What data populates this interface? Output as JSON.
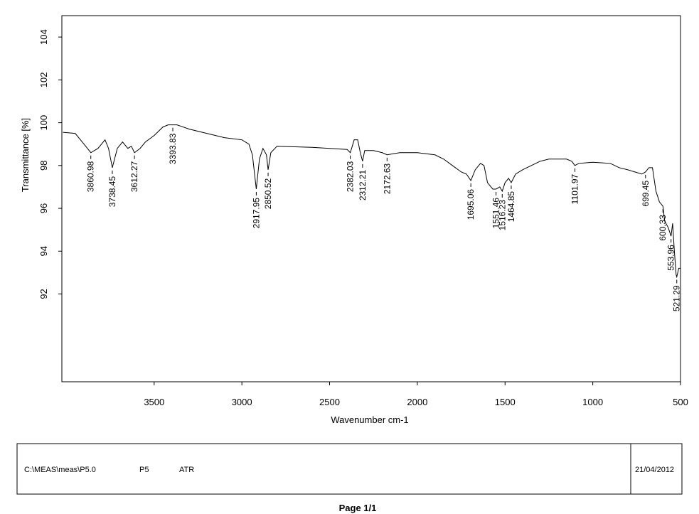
{
  "chart_data": {
    "type": "line",
    "x_label": "Wavenumber cm-1",
    "y_label": "Transmittance [%]",
    "color": "#000000",
    "xlim": [
      4026,
      500
    ],
    "ylim": [
      87.9,
      105
    ],
    "xticks": [
      3500,
      3000,
      2500,
      2000,
      1500,
      1000,
      500
    ],
    "yticks": [
      92,
      94,
      96,
      98,
      100,
      102,
      104
    ],
    "x": [
      4020,
      3950,
      3900,
      3860.98,
      3820,
      3780,
      3760,
      3738.45,
      3710,
      3680,
      3650,
      3630,
      3612.27,
      3580,
      3550,
      3500,
      3450,
      3420,
      3393.83,
      3370,
      3300,
      3200,
      3100,
      3000,
      2960,
      2940,
      2917.95,
      2900,
      2880,
      2860,
      2850.52,
      2835,
      2800,
      2600,
      2400,
      2382.03,
      2360,
      2340,
      2325,
      2312.21,
      2300,
      2250,
      2200,
      2172.63,
      2100,
      2000,
      1900,
      1850,
      1800,
      1750,
      1720,
      1695.06,
      1670,
      1640,
      1620,
      1600,
      1570,
      1551.46,
      1530,
      1516.23,
      1500,
      1480,
      1464.85,
      1440,
      1400,
      1350,
      1300,
      1250,
      1200,
      1150,
      1120,
      1101.97,
      1080,
      1000,
      900,
      850,
      800,
      720,
      699.45,
      680,
      660,
      640,
      620,
      600.33,
      590,
      570,
      553.96,
      545,
      535,
      525,
      521.29,
      510,
      500
    ],
    "values": [
      99.55,
      99.5,
      99.0,
      98.6,
      98.8,
      99.2,
      98.8,
      97.9,
      98.8,
      99.1,
      98.8,
      98.9,
      98.6,
      98.8,
      99.1,
      99.4,
      99.8,
      99.9,
      99.9,
      99.9,
      99.7,
      99.5,
      99.3,
      99.2,
      99.0,
      98.5,
      96.9,
      98.3,
      98.8,
      98.5,
      97.8,
      98.6,
      98.9,
      98.85,
      98.75,
      98.6,
      99.2,
      99.2,
      98.6,
      98.2,
      98.7,
      98.7,
      98.6,
      98.5,
      98.6,
      98.6,
      98.5,
      98.3,
      98.0,
      97.7,
      97.6,
      97.3,
      97.8,
      98.1,
      98.0,
      97.2,
      96.9,
      96.9,
      97.0,
      96.8,
      97.2,
      97.4,
      97.2,
      97.6,
      97.8,
      98.0,
      98.2,
      98.3,
      98.3,
      98.3,
      98.2,
      98.0,
      98.1,
      98.15,
      98.1,
      97.9,
      97.8,
      97.6,
      97.7,
      97.9,
      97.9,
      96.8,
      96.3,
      96.1,
      95.4,
      95.1,
      94.7,
      95.3,
      94.0,
      92.9,
      92.8,
      93.2,
      93.2
    ],
    "peaks": [
      3860.98,
      3738.45,
      3612.27,
      3393.83,
      2917.95,
      2850.52,
      2382.03,
      2312.21,
      2172.63,
      1695.06,
      1551.46,
      1516.23,
      1464.85,
      1101.97,
      699.45,
      600.33,
      553.96,
      521.29
    ],
    "peak_y": [
      98.6,
      97.9,
      98.6,
      99.9,
      96.9,
      97.8,
      98.6,
      98.2,
      98.5,
      97.3,
      96.9,
      96.8,
      97.2,
      98.0,
      97.7,
      96.1,
      94.7,
      92.8
    ]
  },
  "footer": {
    "path": "C:\\MEAS\\meas\\P5.0",
    "sample": "P5",
    "mode": "ATR",
    "date": "21/04/2012",
    "page": "Page 1/1"
  }
}
